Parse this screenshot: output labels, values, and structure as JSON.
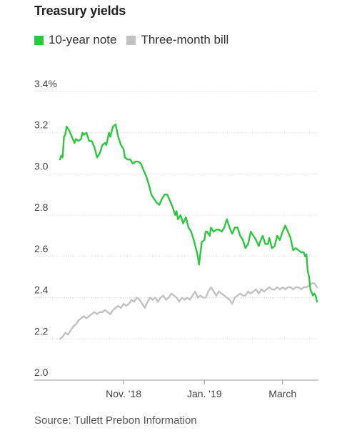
{
  "chart_data": {
    "type": "line",
    "title": "Treasury yields",
    "source": "Source: Tullett Prebon Information",
    "xlabel": "",
    "ylabel": "",
    "y_ticks": [
      {
        "value": 3.4,
        "label": "3.4%"
      },
      {
        "value": 3.2,
        "label": "3.2"
      },
      {
        "value": 3.0,
        "label": "3.0"
      },
      {
        "value": 2.8,
        "label": "2.8"
      },
      {
        "value": 2.6,
        "label": "2.6"
      },
      {
        "value": 2.4,
        "label": "2.4"
      },
      {
        "value": 2.2,
        "label": "2.2"
      },
      {
        "value": 2.0,
        "label": "2.0"
      }
    ],
    "ylim": [
      2.0,
      3.4
    ],
    "x_range": [
      "2018-09-14",
      "2019-03-27"
    ],
    "x_ticks": [
      {
        "date": "2018-11-01",
        "label": "Nov. '18"
      },
      {
        "date": "2019-01-01",
        "label": "Jan. '19"
      },
      {
        "date": "2019-03-01",
        "label": "March"
      }
    ],
    "grid": "horizontal",
    "legend_position": "top-left",
    "series": [
      {
        "name": "10-year note",
        "color": "#2dc740",
        "points": [
          [
            "2018-09-14",
            3.07
          ],
          [
            "2018-09-15",
            3.09
          ],
          [
            "2018-09-16",
            3.08
          ],
          [
            "2018-09-17",
            3.18
          ],
          [
            "2018-09-18",
            3.19
          ],
          [
            "2018-09-19",
            3.23
          ],
          [
            "2018-09-21",
            3.21
          ],
          [
            "2018-09-23",
            3.18
          ],
          [
            "2018-09-25",
            3.15
          ],
          [
            "2018-09-26",
            3.17
          ],
          [
            "2018-09-28",
            3.16
          ],
          [
            "2018-09-30",
            3.17
          ],
          [
            "2018-10-01",
            3.2
          ],
          [
            "2018-10-02",
            3.19
          ],
          [
            "2018-10-04",
            3.2
          ],
          [
            "2018-10-06",
            3.16
          ],
          [
            "2018-10-08",
            3.16
          ],
          [
            "2018-10-10",
            3.13
          ],
          [
            "2018-10-12",
            3.08
          ],
          [
            "2018-10-14",
            3.1
          ],
          [
            "2018-10-16",
            3.14
          ],
          [
            "2018-10-18",
            3.15
          ],
          [
            "2018-10-19",
            3.14
          ],
          [
            "2018-10-21",
            3.2
          ],
          [
            "2018-10-22",
            3.18
          ],
          [
            "2018-10-24",
            3.23
          ],
          [
            "2018-10-26",
            3.24
          ],
          [
            "2018-10-28",
            3.18
          ],
          [
            "2018-10-30",
            3.14
          ],
          [
            "2018-11-01",
            3.12
          ],
          [
            "2018-11-02",
            3.08
          ],
          [
            "2018-11-04",
            3.07
          ],
          [
            "2018-11-06",
            3.07
          ],
          [
            "2018-11-08",
            3.05
          ],
          [
            "2018-11-10",
            3.06
          ],
          [
            "2018-11-12",
            3.06
          ],
          [
            "2018-11-14",
            3.05
          ],
          [
            "2018-11-16",
            3.02
          ],
          [
            "2018-11-18",
            2.99
          ],
          [
            "2018-11-20",
            2.95
          ],
          [
            "2018-11-22",
            2.9
          ],
          [
            "2018-11-24",
            2.88
          ],
          [
            "2018-11-26",
            2.86
          ],
          [
            "2018-11-28",
            2.85
          ],
          [
            "2018-11-30",
            2.88
          ],
          [
            "2018-12-02",
            2.9
          ],
          [
            "2018-12-04",
            2.9
          ],
          [
            "2018-12-06",
            2.87
          ],
          [
            "2018-12-08",
            2.84
          ],
          [
            "2018-12-10",
            2.8
          ],
          [
            "2018-12-11",
            2.82
          ],
          [
            "2018-12-12",
            2.78
          ],
          [
            "2018-12-14",
            2.8
          ],
          [
            "2018-12-16",
            2.76
          ],
          [
            "2018-12-18",
            2.79
          ],
          [
            "2018-12-20",
            2.74
          ],
          [
            "2018-12-22",
            2.72
          ],
          [
            "2018-12-24",
            2.68
          ],
          [
            "2018-12-26",
            2.63
          ],
          [
            "2018-12-27",
            2.6
          ],
          [
            "2018-12-28",
            2.56
          ],
          [
            "2018-12-30",
            2.67
          ],
          [
            "2019-01-01",
            2.68
          ],
          [
            "2019-01-02",
            2.72
          ],
          [
            "2019-01-03",
            2.72
          ],
          [
            "2019-01-05",
            2.7
          ],
          [
            "2019-01-06",
            2.74
          ],
          [
            "2019-01-08",
            2.72
          ],
          [
            "2019-01-10",
            2.73
          ],
          [
            "2019-01-12",
            2.73
          ],
          [
            "2019-01-14",
            2.72
          ],
          [
            "2019-01-16",
            2.74
          ],
          [
            "2019-01-18",
            2.78
          ],
          [
            "2019-01-20",
            2.74
          ],
          [
            "2019-01-22",
            2.71
          ],
          [
            "2019-01-24",
            2.74
          ],
          [
            "2019-01-26",
            2.74
          ],
          [
            "2019-01-28",
            2.7
          ],
          [
            "2019-01-30",
            2.68
          ],
          [
            "2019-02-01",
            2.64
          ],
          [
            "2019-02-03",
            2.66
          ],
          [
            "2019-02-05",
            2.72
          ],
          [
            "2019-02-07",
            2.7
          ],
          [
            "2019-02-09",
            2.68
          ],
          [
            "2019-02-11",
            2.65
          ],
          [
            "2019-02-12",
            2.67
          ],
          [
            "2019-02-14",
            2.7
          ],
          [
            "2019-02-16",
            2.66
          ],
          [
            "2019-02-18",
            2.66
          ],
          [
            "2019-02-19",
            2.69
          ],
          [
            "2019-02-21",
            2.64
          ],
          [
            "2019-02-23",
            2.65
          ],
          [
            "2019-02-25",
            2.7
          ],
          [
            "2019-02-27",
            2.68
          ],
          [
            "2019-03-01",
            2.72
          ],
          [
            "2019-03-03",
            2.75
          ],
          [
            "2019-03-05",
            2.72
          ],
          [
            "2019-03-07",
            2.69
          ],
          [
            "2019-03-09",
            2.63
          ],
          [
            "2019-03-11",
            2.64
          ],
          [
            "2019-03-13",
            2.63
          ],
          [
            "2019-03-15",
            2.62
          ],
          [
            "2019-03-17",
            2.62
          ],
          [
            "2019-03-18",
            2.6
          ],
          [
            "2019-03-19",
            2.61
          ],
          [
            "2019-03-20",
            2.53
          ],
          [
            "2019-03-21",
            2.5
          ],
          [
            "2019-03-22",
            2.44
          ],
          [
            "2019-03-24",
            2.41
          ],
          [
            "2019-03-25",
            2.42
          ],
          [
            "2019-03-26",
            2.41
          ],
          [
            "2019-03-27",
            2.38
          ]
        ]
      },
      {
        "name": "Three-month bill",
        "color": "#c2c2c2",
        "points": [
          [
            "2018-09-14",
            2.2
          ],
          [
            "2018-09-16",
            2.21
          ],
          [
            "2018-09-18",
            2.23
          ],
          [
            "2018-09-20",
            2.22
          ],
          [
            "2018-09-22",
            2.24
          ],
          [
            "2018-09-24",
            2.26
          ],
          [
            "2018-09-26",
            2.27
          ],
          [
            "2018-09-28",
            2.29
          ],
          [
            "2018-09-30",
            2.3
          ],
          [
            "2018-10-02",
            2.31
          ],
          [
            "2018-10-04",
            2.3
          ],
          [
            "2018-10-06",
            2.31
          ],
          [
            "2018-10-08",
            2.32
          ],
          [
            "2018-10-10",
            2.33
          ],
          [
            "2018-10-12",
            2.32
          ],
          [
            "2018-10-14",
            2.33
          ],
          [
            "2018-10-16",
            2.33
          ],
          [
            "2018-10-18",
            2.34
          ],
          [
            "2018-10-20",
            2.33
          ],
          [
            "2018-10-22",
            2.32
          ],
          [
            "2018-10-24",
            2.34
          ],
          [
            "2018-10-26",
            2.35
          ],
          [
            "2018-10-28",
            2.36
          ],
          [
            "2018-10-30",
            2.35
          ],
          [
            "2018-11-01",
            2.37
          ],
          [
            "2018-11-03",
            2.36
          ],
          [
            "2018-11-05",
            2.37
          ],
          [
            "2018-11-07",
            2.39
          ],
          [
            "2018-11-09",
            2.38
          ],
          [
            "2018-11-11",
            2.4
          ],
          [
            "2018-11-13",
            2.39
          ],
          [
            "2018-11-15",
            2.37
          ],
          [
            "2018-11-17",
            2.35
          ],
          [
            "2018-11-19",
            2.38
          ],
          [
            "2018-11-21",
            2.4
          ],
          [
            "2018-11-23",
            2.39
          ],
          [
            "2018-11-25",
            2.4
          ],
          [
            "2018-11-27",
            2.38
          ],
          [
            "2018-11-29",
            2.4
          ],
          [
            "2018-12-01",
            2.41
          ],
          [
            "2018-12-03",
            2.39
          ],
          [
            "2018-12-05",
            2.4
          ],
          [
            "2018-12-07",
            2.42
          ],
          [
            "2018-12-09",
            2.41
          ],
          [
            "2018-12-11",
            2.4
          ],
          [
            "2018-12-13",
            2.38
          ],
          [
            "2018-12-15",
            2.4
          ],
          [
            "2018-12-17",
            2.39
          ],
          [
            "2018-12-19",
            2.4
          ],
          [
            "2018-12-21",
            2.39
          ],
          [
            "2018-12-23",
            2.41
          ],
          [
            "2018-12-25",
            2.43
          ],
          [
            "2018-12-27",
            2.4
          ],
          [
            "2018-12-29",
            2.41
          ],
          [
            "2018-12-31",
            2.4
          ],
          [
            "2019-01-02",
            2.4
          ],
          [
            "2019-01-04",
            2.43
          ],
          [
            "2019-01-06",
            2.45
          ],
          [
            "2019-01-08",
            2.43
          ],
          [
            "2019-01-10",
            2.41
          ],
          [
            "2019-01-12",
            2.43
          ],
          [
            "2019-01-14",
            2.42
          ],
          [
            "2019-01-16",
            2.41
          ],
          [
            "2019-01-18",
            2.4
          ],
          [
            "2019-01-20",
            2.39
          ],
          [
            "2019-01-22",
            2.37
          ],
          [
            "2019-01-24",
            2.4
          ],
          [
            "2019-01-26",
            2.41
          ],
          [
            "2019-01-28",
            2.42
          ],
          [
            "2019-01-30",
            2.41
          ],
          [
            "2019-02-01",
            2.41
          ],
          [
            "2019-02-03",
            2.43
          ],
          [
            "2019-02-05",
            2.42
          ],
          [
            "2019-02-07",
            2.43
          ],
          [
            "2019-02-09",
            2.44
          ],
          [
            "2019-02-11",
            2.42
          ],
          [
            "2019-02-13",
            2.44
          ],
          [
            "2019-02-15",
            2.43
          ],
          [
            "2019-02-17",
            2.44
          ],
          [
            "2019-02-19",
            2.45
          ],
          [
            "2019-02-21",
            2.44
          ],
          [
            "2019-02-23",
            2.44
          ],
          [
            "2019-02-25",
            2.45
          ],
          [
            "2019-02-27",
            2.44
          ],
          [
            "2019-03-01",
            2.45
          ],
          [
            "2019-03-03",
            2.44
          ],
          [
            "2019-03-05",
            2.45
          ],
          [
            "2019-03-07",
            2.45
          ],
          [
            "2019-03-09",
            2.44
          ],
          [
            "2019-03-11",
            2.45
          ],
          [
            "2019-03-13",
            2.45
          ],
          [
            "2019-03-15",
            2.44
          ],
          [
            "2019-03-17",
            2.45
          ],
          [
            "2019-03-19",
            2.45
          ],
          [
            "2019-03-21",
            2.46
          ],
          [
            "2019-03-23",
            2.47
          ],
          [
            "2019-03-25",
            2.47
          ],
          [
            "2019-03-27",
            2.45
          ]
        ]
      }
    ]
  }
}
